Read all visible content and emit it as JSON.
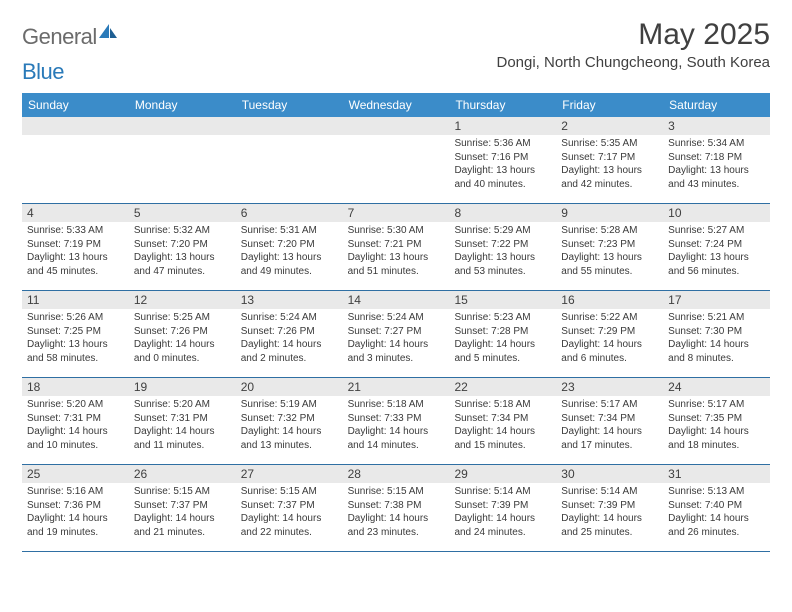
{
  "colors": {
    "header_bg": "#3b8cc9",
    "daynum_bg": "#e9e9e9",
    "week_border": "#2f6fa3",
    "text": "#333333",
    "logo_gray": "#6b6b6b",
    "logo_blue": "#2a7ab9"
  },
  "logo": {
    "part1": "General",
    "part2": "Blue"
  },
  "title": "May 2025",
  "location": "Dongi, North Chungcheong, South Korea",
  "dow": [
    "Sunday",
    "Monday",
    "Tuesday",
    "Wednesday",
    "Thursday",
    "Friday",
    "Saturday"
  ],
  "weeks": [
    [
      null,
      null,
      null,
      null,
      {
        "d": "1",
        "sr": "5:36 AM",
        "ss": "7:16 PM",
        "dl": "13 hours and 40 minutes."
      },
      {
        "d": "2",
        "sr": "5:35 AM",
        "ss": "7:17 PM",
        "dl": "13 hours and 42 minutes."
      },
      {
        "d": "3",
        "sr": "5:34 AM",
        "ss": "7:18 PM",
        "dl": "13 hours and 43 minutes."
      }
    ],
    [
      {
        "d": "4",
        "sr": "5:33 AM",
        "ss": "7:19 PM",
        "dl": "13 hours and 45 minutes."
      },
      {
        "d": "5",
        "sr": "5:32 AM",
        "ss": "7:20 PM",
        "dl": "13 hours and 47 minutes."
      },
      {
        "d": "6",
        "sr": "5:31 AM",
        "ss": "7:20 PM",
        "dl": "13 hours and 49 minutes."
      },
      {
        "d": "7",
        "sr": "5:30 AM",
        "ss": "7:21 PM",
        "dl": "13 hours and 51 minutes."
      },
      {
        "d": "8",
        "sr": "5:29 AM",
        "ss": "7:22 PM",
        "dl": "13 hours and 53 minutes."
      },
      {
        "d": "9",
        "sr": "5:28 AM",
        "ss": "7:23 PM",
        "dl": "13 hours and 55 minutes."
      },
      {
        "d": "10",
        "sr": "5:27 AM",
        "ss": "7:24 PM",
        "dl": "13 hours and 56 minutes."
      }
    ],
    [
      {
        "d": "11",
        "sr": "5:26 AM",
        "ss": "7:25 PM",
        "dl": "13 hours and 58 minutes."
      },
      {
        "d": "12",
        "sr": "5:25 AM",
        "ss": "7:26 PM",
        "dl": "14 hours and 0 minutes."
      },
      {
        "d": "13",
        "sr": "5:24 AM",
        "ss": "7:26 PM",
        "dl": "14 hours and 2 minutes."
      },
      {
        "d": "14",
        "sr": "5:24 AM",
        "ss": "7:27 PM",
        "dl": "14 hours and 3 minutes."
      },
      {
        "d": "15",
        "sr": "5:23 AM",
        "ss": "7:28 PM",
        "dl": "14 hours and 5 minutes."
      },
      {
        "d": "16",
        "sr": "5:22 AM",
        "ss": "7:29 PM",
        "dl": "14 hours and 6 minutes."
      },
      {
        "d": "17",
        "sr": "5:21 AM",
        "ss": "7:30 PM",
        "dl": "14 hours and 8 minutes."
      }
    ],
    [
      {
        "d": "18",
        "sr": "5:20 AM",
        "ss": "7:31 PM",
        "dl": "14 hours and 10 minutes."
      },
      {
        "d": "19",
        "sr": "5:20 AM",
        "ss": "7:31 PM",
        "dl": "14 hours and 11 minutes."
      },
      {
        "d": "20",
        "sr": "5:19 AM",
        "ss": "7:32 PM",
        "dl": "14 hours and 13 minutes."
      },
      {
        "d": "21",
        "sr": "5:18 AM",
        "ss": "7:33 PM",
        "dl": "14 hours and 14 minutes."
      },
      {
        "d": "22",
        "sr": "5:18 AM",
        "ss": "7:34 PM",
        "dl": "14 hours and 15 minutes."
      },
      {
        "d": "23",
        "sr": "5:17 AM",
        "ss": "7:34 PM",
        "dl": "14 hours and 17 minutes."
      },
      {
        "d": "24",
        "sr": "5:17 AM",
        "ss": "7:35 PM",
        "dl": "14 hours and 18 minutes."
      }
    ],
    [
      {
        "d": "25",
        "sr": "5:16 AM",
        "ss": "7:36 PM",
        "dl": "14 hours and 19 minutes."
      },
      {
        "d": "26",
        "sr": "5:15 AM",
        "ss": "7:37 PM",
        "dl": "14 hours and 21 minutes."
      },
      {
        "d": "27",
        "sr": "5:15 AM",
        "ss": "7:37 PM",
        "dl": "14 hours and 22 minutes."
      },
      {
        "d": "28",
        "sr": "5:15 AM",
        "ss": "7:38 PM",
        "dl": "14 hours and 23 minutes."
      },
      {
        "d": "29",
        "sr": "5:14 AM",
        "ss": "7:39 PM",
        "dl": "14 hours and 24 minutes."
      },
      {
        "d": "30",
        "sr": "5:14 AM",
        "ss": "7:39 PM",
        "dl": "14 hours and 25 minutes."
      },
      {
        "d": "31",
        "sr": "5:13 AM",
        "ss": "7:40 PM",
        "dl": "14 hours and 26 minutes."
      }
    ]
  ],
  "labels": {
    "sunrise": "Sunrise: ",
    "sunset": "Sunset: ",
    "daylight": "Daylight: "
  }
}
